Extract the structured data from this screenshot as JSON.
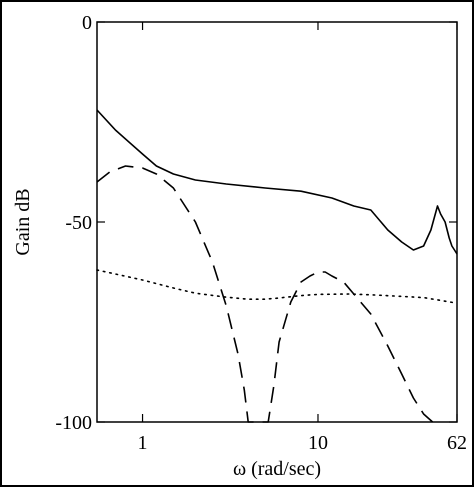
{
  "chart_data": {
    "type": "line",
    "title": "",
    "xlabel": "ω (rad/sec)",
    "ylabel": "Gain dB",
    "xscale": "log",
    "xlim": [
      0.55,
      62
    ],
    "ylim": [
      -100,
      0
    ],
    "grid": false,
    "legend": "none",
    "xticks": [
      1,
      10,
      62
    ],
    "xtick_labels": [
      "1",
      "10",
      "62"
    ],
    "yticks": [
      0,
      -50,
      -100
    ],
    "ytick_labels": [
      "0",
      "-50",
      "-100"
    ],
    "series": [
      {
        "style": "solid",
        "color": "#000000",
        "x": [
          0.55,
          0.7,
          1.0,
          1.2,
          1.5,
          2.0,
          3.0,
          5.0,
          8.0,
          12.0,
          16.0,
          20.0,
          25.0,
          30.0,
          35.0,
          40.0,
          44.0,
          48.0,
          50.0,
          53.0,
          56.0,
          58.0,
          60.0,
          62.0
        ],
        "y": [
          -22,
          -27,
          -33,
          -36,
          -38,
          -39.5,
          -40.5,
          -41.5,
          -42.3,
          -44,
          -46,
          -47,
          -52,
          -55,
          -57,
          -56,
          -52,
          -46,
          -48,
          -50,
          -54,
          -56,
          -57,
          -58
        ]
      },
      {
        "style": "dashed",
        "color": "#000000",
        "x": [
          0.55,
          0.65,
          0.8,
          1.0,
          1.2,
          1.5,
          2.0,
          2.5,
          3.0,
          3.5,
          3.8,
          4.0,
          4.3,
          4.5,
          4.8,
          5.2,
          5.6,
          6.0,
          7.0,
          8.0,
          9.0,
          10.0,
          11.0,
          12.0,
          14.0,
          16.0,
          20.0,
          25.0,
          30.0,
          35.0,
          40.0,
          45.0
        ],
        "y": [
          -40,
          -37.5,
          -36,
          -36.5,
          -38,
          -41.5,
          -50,
          -60,
          -71,
          -83,
          -92,
          -100,
          -100,
          -100,
          -100,
          -100,
          -91,
          -80,
          -70,
          -65,
          -63.5,
          -62.5,
          -62.5,
          -63.5,
          -65,
          -68,
          -73,
          -81,
          -88,
          -94,
          -98,
          -100
        ]
      },
      {
        "style": "dotted",
        "color": "#000000",
        "x": [
          0.55,
          0.7,
          1.0,
          1.5,
          2.0,
          3.0,
          4.0,
          5.0,
          6.0,
          8.0,
          10.0,
          15.0,
          20.0,
          30.0,
          40.0,
          50.0,
          62.0
        ],
        "y": [
          -62,
          -63,
          -64.5,
          -66.5,
          -67.8,
          -68.8,
          -69.3,
          -69.3,
          -69.0,
          -68.4,
          -68.1,
          -68.0,
          -68.2,
          -68.6,
          -68.9,
          -69.6,
          -70.3
        ]
      }
    ]
  }
}
